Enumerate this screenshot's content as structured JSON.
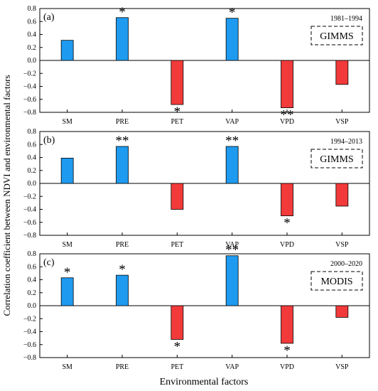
{
  "figure": {
    "ylabel": "Correlation coefficient between NDVI and environmental factors",
    "xlabel": "Environmental factors"
  },
  "colors": {
    "positive": "#1e9bf0",
    "negative": "#f23a3a",
    "axis": "#000000"
  },
  "chart_data": [
    {
      "type": "bar",
      "panel_label": "(a)",
      "period": "1981–1994",
      "dataset": "GIMMS",
      "categories": [
        "SM",
        "PRE",
        "PET",
        "VAP",
        "VPD",
        "VSP"
      ],
      "values": [
        0.31,
        0.66,
        -0.68,
        0.65,
        -0.73,
        -0.37
      ],
      "significance": [
        "",
        "*",
        "*",
        "*",
        "**",
        ""
      ],
      "ylim": [
        -0.8,
        0.8
      ],
      "yticks": [
        "0.8",
        "0.6",
        "0.4",
        "0.2",
        "0.0",
        "−0.2",
        "−0.4",
        "−0.6",
        "−0.8"
      ],
      "grid": false
    },
    {
      "type": "bar",
      "panel_label": "(b)",
      "period": "1994–2013",
      "dataset": "GIMMS",
      "categories": [
        "SM",
        "PRE",
        "PET",
        "VAP",
        "VPD",
        "VSP"
      ],
      "values": [
        0.39,
        0.57,
        -0.4,
        0.57,
        -0.5,
        -0.35
      ],
      "significance": [
        "",
        "**",
        "",
        "**",
        "*",
        ""
      ],
      "ylim": [
        -0.8,
        0.8
      ],
      "yticks": [
        "0.8",
        "0.6",
        "0.4",
        "0.2",
        "0.0",
        "−0.2",
        "−0.4",
        "−0.6",
        "−0.8"
      ],
      "grid": false
    },
    {
      "type": "bar",
      "panel_label": "(c)",
      "period": "2000–2020",
      "dataset": "MODIS",
      "categories": [
        "SM",
        "PRE",
        "PET",
        "VAP",
        "VPD",
        "VSP"
      ],
      "values": [
        0.43,
        0.47,
        -0.52,
        0.77,
        -0.58,
        -0.18
      ],
      "significance": [
        "*",
        "*",
        "*",
        "**",
        "*",
        ""
      ],
      "ylim": [
        -0.8,
        0.8
      ],
      "yticks": [
        "0.8",
        "0.6",
        "0.4",
        "0.2",
        "0.0",
        "−0.2",
        "−0.4",
        "−0.6",
        "−0.8"
      ],
      "grid": false
    }
  ]
}
